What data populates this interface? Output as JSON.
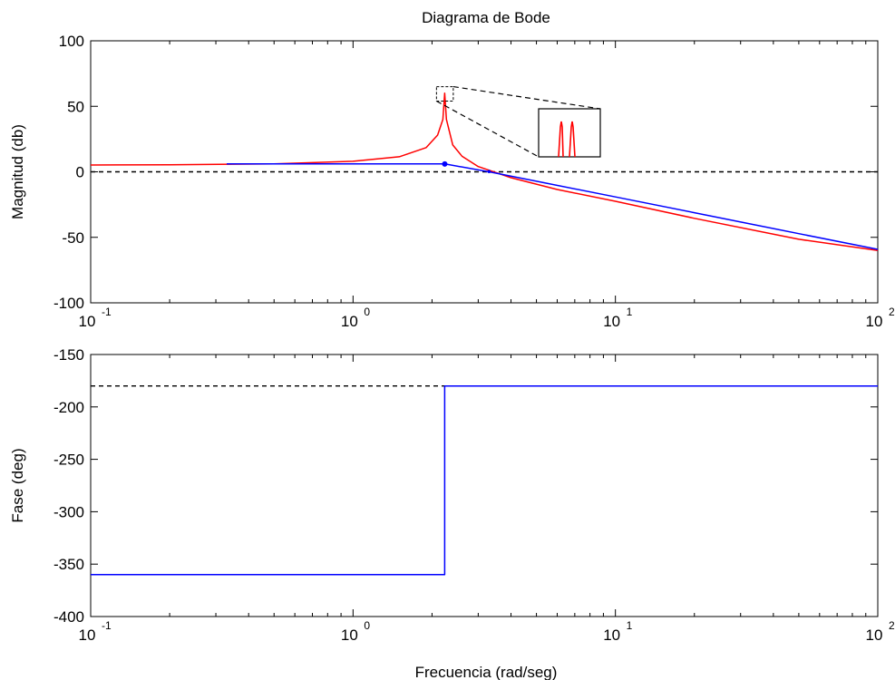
{
  "figure": {
    "title": "Diagrama de Bode",
    "xlabel": "Frecuencia (rad/seg)"
  },
  "colors": {
    "axes": "#000000",
    "exact": "#ff0000",
    "asymptote": "#0000ff",
    "reference": "#000000"
  },
  "chart_data": [
    {
      "type": "line",
      "title": "Diagrama de Bode",
      "xlabel": "",
      "ylabel": "Magnitud (db)",
      "xscale": "log",
      "xlim": [
        0.1,
        100
      ],
      "ylim": [
        -100,
        100
      ],
      "yticks": [
        -100,
        -50,
        0,
        50,
        100
      ],
      "yticklabels": [
        "-100",
        "-50",
        "0",
        "50",
        "100"
      ],
      "xticks": [
        0.1,
        1,
        10,
        100
      ],
      "xtick_base": "10",
      "xtick_exponents": [
        "-1",
        "0",
        "1",
        "2"
      ],
      "grid": false,
      "reference_line": {
        "y": 0,
        "style": "dashed"
      },
      "series": [
        {
          "style": "solid-red",
          "x": [
            0.1,
            0.2,
            0.5,
            1.0,
            1.5,
            1.9,
            2.1,
            2.2,
            2.236,
            2.27,
            2.4,
            2.6,
            3.0,
            4.0,
            6.0,
            10,
            20,
            50,
            100
          ],
          "y": [
            5.2,
            5.4,
            6.0,
            8.0,
            11.5,
            18.5,
            28.0,
            40.0,
            60.0,
            40.0,
            20.5,
            12.0,
            4.0,
            -4.5,
            -13.5,
            -22.5,
            -35.5,
            -51.5,
            -60.0
          ]
        },
        {
          "style": "solid-blue",
          "x": [
            0.33,
            2.236,
            3.3,
            5,
            10,
            20,
            50,
            100
          ],
          "y": [
            6.0,
            6.0,
            0.0,
            -7.2,
            -19.2,
            -31.2,
            -47.2,
            -59.2
          ]
        }
      ],
      "markers": [
        {
          "x": 2.236,
          "y": 6.0,
          "style": "blue-dot"
        }
      ],
      "inset": {
        "description": "zoom box showing the resonance peak split into two narrow spikes",
        "source_box_x": [
          2.08,
          2.41
        ],
        "source_box_y": [
          54,
          65
        ]
      }
    },
    {
      "type": "line",
      "title": "",
      "xlabel": "Frecuencia (rad/seg)",
      "ylabel": "Fase (deg)",
      "xscale": "log",
      "xlim": [
        0.1,
        100
      ],
      "ylim": [
        -400,
        -150
      ],
      "yticks": [
        -400,
        -350,
        -300,
        -250,
        -200,
        -150
      ],
      "yticklabels": [
        "-400",
        "-350",
        "-300",
        "-250",
        "-200",
        "-150"
      ],
      "xticks": [
        0.1,
        1,
        10,
        100
      ],
      "xtick_base": "10",
      "xtick_exponents": [
        "-1",
        "0",
        "1",
        "2"
      ],
      "grid": false,
      "reference_line": {
        "y": -180,
        "style": "dashed"
      },
      "series": [
        {
          "style": "solid-blue",
          "x": [
            0.1,
            2.236,
            2.236,
            100
          ],
          "y": [
            -360,
            -360,
            -180,
            -180
          ]
        }
      ]
    }
  ]
}
